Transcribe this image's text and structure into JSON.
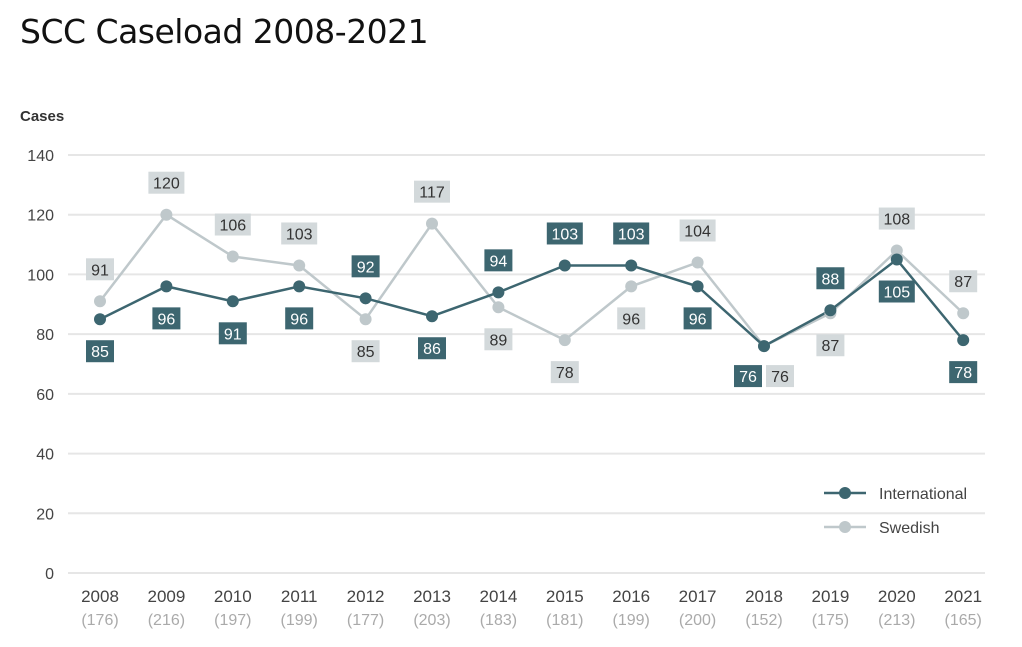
{
  "chart_data": {
    "type": "line",
    "title": "SCC Caseload 2008-2021",
    "ylabel": "Cases",
    "xlabel": "",
    "ylim": [
      0,
      140
    ],
    "yticks": [
      0,
      20,
      40,
      60,
      80,
      100,
      120,
      140
    ],
    "grid": true,
    "legend_position": "bottom-right",
    "categories": [
      "2008",
      "2009",
      "2010",
      "2011",
      "2012",
      "2013",
      "2014",
      "2015",
      "2016",
      "2017",
      "2018",
      "2019",
      "2020",
      "2021"
    ],
    "totals": [
      "(176)",
      "(216)",
      "(197)",
      "(199)",
      "(177)",
      "(203)",
      "(183)",
      "(181)",
      "(199)",
      "(200)",
      "(152)",
      "(175)",
      "(213)",
      "(165)"
    ],
    "series": [
      {
        "name": "International",
        "color": "#3d6670",
        "values": [
          85,
          96,
          91,
          96,
          92,
          86,
          94,
          103,
          103,
          96,
          76,
          88,
          105,
          78
        ]
      },
      {
        "name": "Swedish",
        "color": "#bfc8cb",
        "values": [
          91,
          120,
          106,
          103,
          85,
          117,
          89,
          78,
          96,
          104,
          76,
          87,
          108,
          87
        ]
      }
    ]
  }
}
